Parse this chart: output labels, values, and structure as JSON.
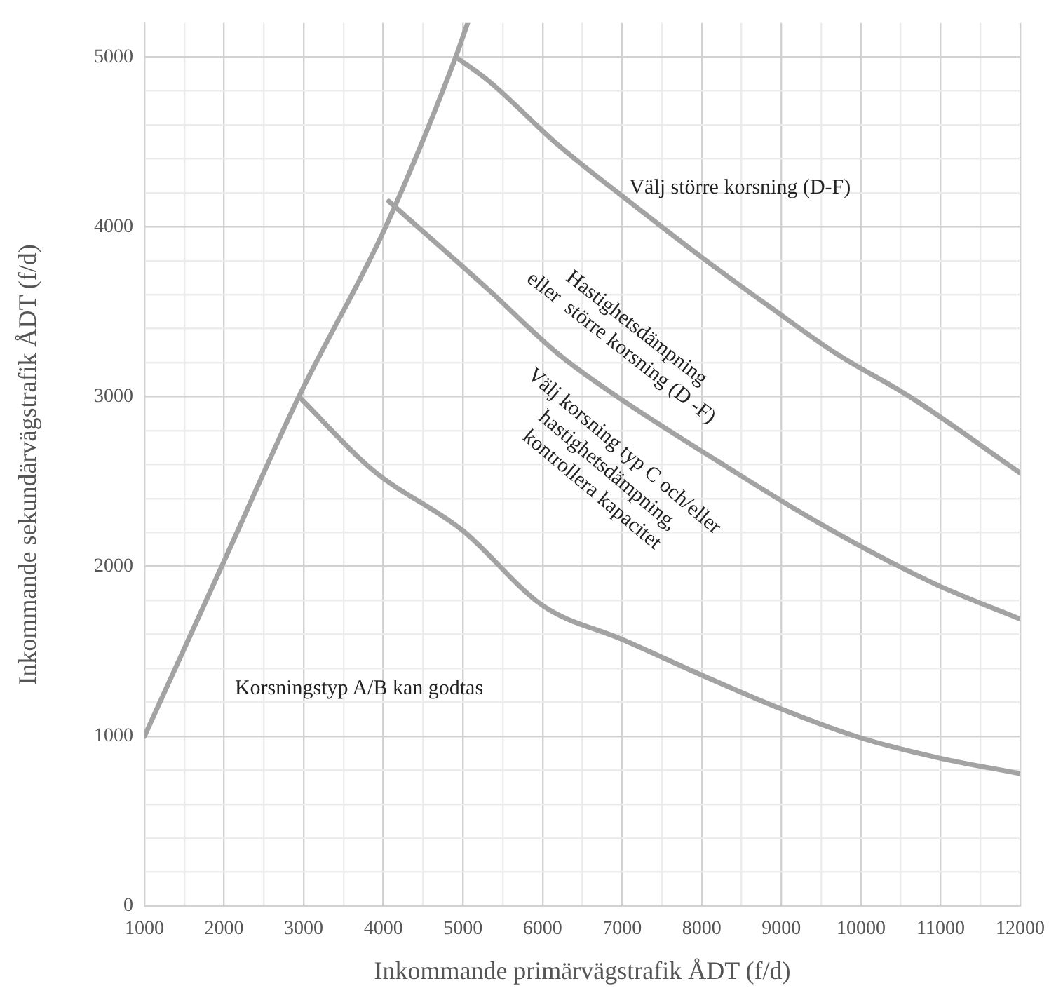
{
  "chart_data": {
    "type": "line",
    "xlabel": "Inkommande primärvägstrafik ÅDT (f/d)",
    "ylabel": "Inkommande sekundärvägstrafik ÅDT (f/d)",
    "xlim": [
      1000,
      12000
    ],
    "ylim": [
      0,
      5200
    ],
    "xticks": [
      1000,
      {
        "value": 1500,
        "label": null
      },
      2000,
      {
        "value": 2500,
        "label": null
      },
      3000,
      {
        "value": 3500,
        "label": null
      },
      4000,
      {
        "value": 4500,
        "label": null
      },
      5000,
      {
        "value": 5500,
        "label": null
      },
      6000,
      {
        "value": 6500,
        "label": null
      },
      7000,
      {
        "value": 7500,
        "label": null
      },
      8000,
      {
        "value": 8500,
        "label": null
      },
      9000,
      {
        "value": 9500,
        "label": null
      },
      10000,
      {
        "value": 10500,
        "label": null
      },
      11000,
      {
        "value": 11500,
        "label": null
      },
      12000
    ],
    "yticks": [
      0,
      {
        "value": 200,
        "label": null
      },
      {
        "value": 400,
        "label": null
      },
      {
        "value": 600,
        "label": null
      },
      {
        "value": 800,
        "label": null
      },
      1000,
      {
        "value": 1200,
        "label": null
      },
      {
        "value": 1400,
        "label": null
      },
      {
        "value": 1600,
        "label": null
      },
      {
        "value": 1800,
        "label": null
      },
      2000,
      {
        "value": 2200,
        "label": null
      },
      {
        "value": 2400,
        "label": null
      },
      {
        "value": 2600,
        "label": null
      },
      {
        "value": 2800,
        "label": null
      },
      3000,
      {
        "value": 3200,
        "label": null
      },
      {
        "value": 3400,
        "label": null
      },
      {
        "value": 3600,
        "label": null
      },
      {
        "value": 3800,
        "label": null
      },
      4000,
      {
        "value": 4200,
        "label": null
      },
      {
        "value": 4400,
        "label": null
      },
      {
        "value": 4600,
        "label": null
      },
      {
        "value": 4800,
        "label": null
      },
      5000
    ],
    "grid": true,
    "marker": "none",
    "line_style": "solid",
    "legend": false,
    "series": [
      {
        "color": "#a3a3a3",
        "x": [
          1000,
          1970,
          2940,
          4030,
          4910,
          5060
        ],
        "values": [
          1000,
          2000,
          3000,
          4000,
          5000,
          5200
        ]
      },
      {
        "color": "#a3a3a3",
        "x": [
          2940,
          3860,
          5000,
          6000,
          7000,
          8000,
          9000,
          10000,
          11000,
          12000
        ],
        "values": [
          3000,
          2570,
          2210,
          1770,
          1570,
          1360,
          1160,
          990,
          870,
          780
        ]
      },
      {
        "color": "#a3a3a3",
        "x": [
          4070,
          5320,
          6200,
          7000,
          8370,
          9200,
          10030,
          10960,
          12000
        ],
        "values": [
          4150,
          3630,
          3250,
          2980,
          2570,
          2330,
          2110,
          1890,
          1690
        ]
      },
      {
        "color": "#a3a3a3",
        "x": [
          4910,
          5320,
          6200,
          7085,
          8000,
          8850,
          9700,
          10610,
          12000
        ],
        "values": [
          5000,
          4860,
          4480,
          4150,
          3820,
          3530,
          3250,
          3000,
          2550
        ]
      }
    ],
    "annotations": [
      "Välj större korsning (D-F)",
      "Hastighetsdämpning\neller  större korsning (D -F)",
      "Välj korsning typ C och/eller\nhastighetsdämpning,\nkontrollera kapacitet",
      "Korsningstyp A/B kan godtas"
    ]
  }
}
